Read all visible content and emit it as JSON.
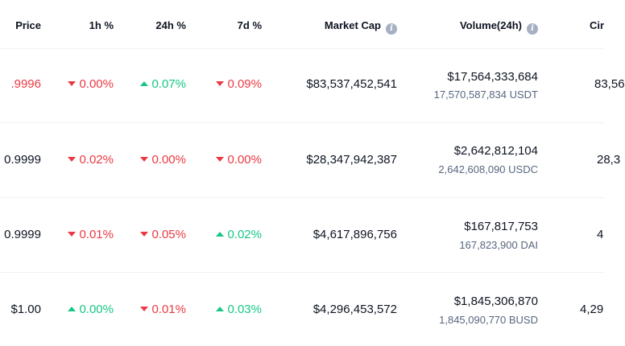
{
  "header": {
    "price": "Price",
    "h1": "1h %",
    "h24": "24h %",
    "d7": "7d %",
    "market_cap": "Market Cap",
    "volume": "Volume(24h)",
    "circ": "Cir",
    "info_icon_glyph": "i"
  },
  "rows": [
    {
      "price": ".9996",
      "price_color": "red",
      "h1": {
        "dir": "down",
        "value": "0.00%"
      },
      "h24": {
        "dir": "up",
        "value": "0.07%"
      },
      "d7": {
        "dir": "down",
        "value": "0.09%"
      },
      "market_cap": "$83,537,452,541",
      "volume": "$17,564,333,684",
      "volume_sub": "17,570,587,834 USDT",
      "circ": "83,56"
    },
    {
      "price": "0.9999",
      "price_color": "dark",
      "h1": {
        "dir": "down",
        "value": "0.02%"
      },
      "h24": {
        "dir": "down",
        "value": "0.00%"
      },
      "d7": {
        "dir": "down",
        "value": "0.00%"
      },
      "market_cap": "$28,347,942,387",
      "volume": "$2,642,812,104",
      "volume_sub": "2,642,608,090 USDC",
      "circ": "28,3"
    },
    {
      "price": "0.9999",
      "price_color": "dark",
      "h1": {
        "dir": "down",
        "value": "0.01%"
      },
      "h24": {
        "dir": "down",
        "value": "0.05%"
      },
      "d7": {
        "dir": "up",
        "value": "0.02%"
      },
      "market_cap": "$4,617,896,756",
      "volume": "$167,817,753",
      "volume_sub": "167,823,900 DAI",
      "circ": "4"
    },
    {
      "price": "$1.00",
      "price_color": "dark",
      "h1": {
        "dir": "up",
        "value": "0.00%"
      },
      "h24": {
        "dir": "down",
        "value": "0.01%"
      },
      "d7": {
        "dir": "up",
        "value": "0.03%"
      },
      "market_cap": "$4,296,453,572",
      "volume": "$1,845,306,870",
      "volume_sub": "1,845,090,770 BUSD",
      "circ": "4,29"
    }
  ]
}
